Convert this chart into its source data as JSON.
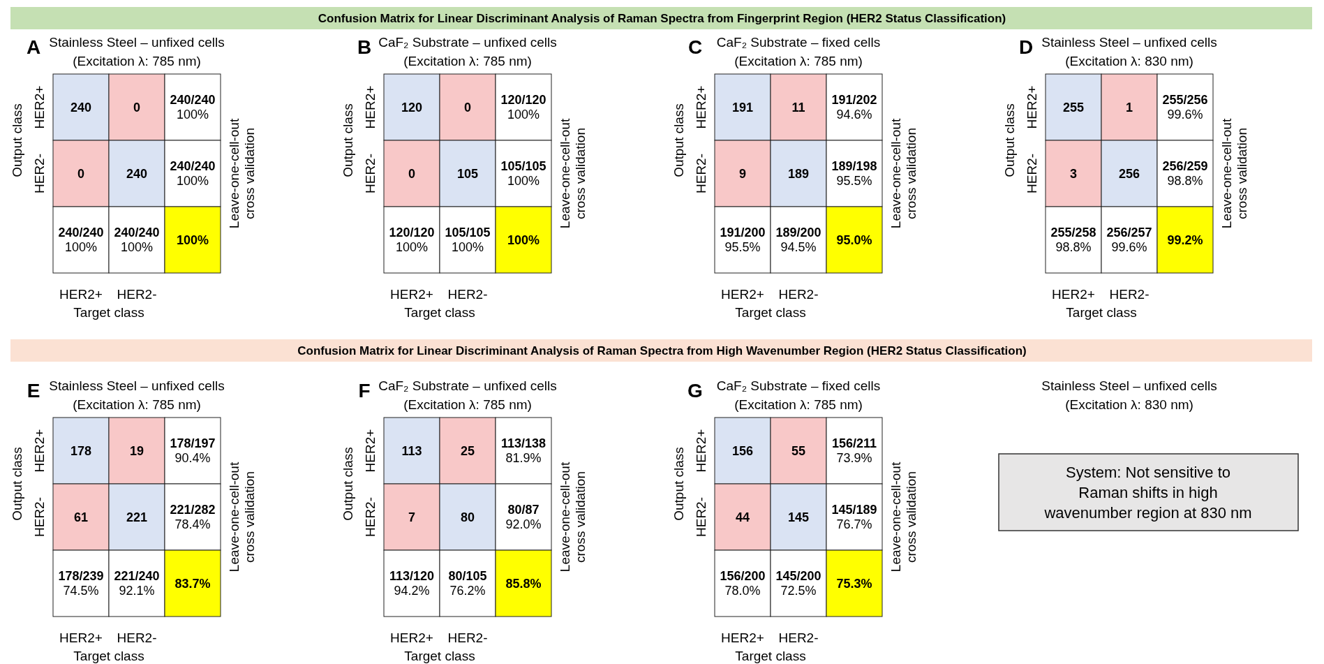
{
  "chart_data": [
    {
      "type": "other",
      "title": "Confusion Matrix for Linear Discriminant Analysis of Raman Spectra from Fingerprint Region (HER2 Status Classification)",
      "color": "#c5e0b3"
    },
    {
      "type": "heatmap",
      "title": "Stainless Steel – unfixed cells\n(Excitation λ: 785 nm)",
      "annotations": [
        "A"
      ],
      "xlabel": "Target class",
      "ylabel": "Output class",
      "y2label": "Leave-one-cell-out\ncross validation",
      "categories": [
        "HER2+",
        "HER2-",
        null
      ],
      "y_categories": [
        "HER2+",
        "HER2-",
        null
      ],
      "cells": [
        [
          240,
          0,
          null
        ],
        [
          0,
          240,
          null
        ],
        [
          null,
          null,
          100
        ]
      ],
      "cell_labels": [
        [
          "240",
          "0",
          "240/240\n100%"
        ],
        [
          "0",
          "240",
          "240/240\n100%"
        ],
        [
          "240/240\n100%",
          "240/240\n100%",
          "100%"
        ]
      ],
      "colors": [
        [
          "#dae3f3",
          "#f8c8c8",
          "#ffffff"
        ],
        [
          "#f8c8c8",
          "#dae3f3",
          "#ffffff"
        ],
        [
          "#ffffff",
          "#ffffff",
          "#ffff00"
        ]
      ]
    },
    {
      "type": "heatmap",
      "title": "CaF₂ Substrate – unfixed cells\n(Excitation λ: 785 nm)",
      "annotations": [
        "B"
      ],
      "xlabel": "Target class",
      "ylabel": "Output class",
      "y2label": "Leave-one-cell-out\ncross validation",
      "categories": [
        "HER2+",
        "HER2-",
        null
      ],
      "y_categories": [
        "HER2+",
        "HER2-",
        null
      ],
      "cells": [
        [
          120,
          0,
          null
        ],
        [
          0,
          105,
          null
        ],
        [
          null,
          null,
          100
        ]
      ],
      "cell_labels": [
        [
          "120",
          "0",
          "120/120\n100%"
        ],
        [
          "0",
          "105",
          "105/105\n100%"
        ],
        [
          "120/120\n100%",
          "105/105\n100%",
          "100%"
        ]
      ],
      "colors": [
        [
          "#dae3f3",
          "#f8c8c8",
          "#ffffff"
        ],
        [
          "#f8c8c8",
          "#dae3f3",
          "#ffffff"
        ],
        [
          "#ffffff",
          "#ffffff",
          "#ffff00"
        ]
      ]
    },
    {
      "type": "heatmap",
      "title": "CaF₂ Substrate – fixed cells\n(Excitation λ: 785 nm)",
      "annotations": [
        "C"
      ],
      "xlabel": "Target class",
      "ylabel": "Output class",
      "y2label": "Leave-one-cell-out\ncross validation",
      "categories": [
        "HER2+",
        "HER2-",
        null
      ],
      "y_categories": [
        "HER2+",
        "HER2-",
        null
      ],
      "cells": [
        [
          191,
          11,
          null
        ],
        [
          9,
          189,
          null
        ],
        [
          null,
          null,
          95.0
        ]
      ],
      "cell_labels": [
        [
          "191",
          "11",
          "191/202\n94.6%"
        ],
        [
          "9",
          "189",
          "189/198\n95.5%"
        ],
        [
          "191/200\n95.5%",
          "189/200\n94.5%",
          "95.0%"
        ]
      ],
      "colors": [
        [
          "#dae3f3",
          "#f8c8c8",
          "#ffffff"
        ],
        [
          "#f8c8c8",
          "#dae3f3",
          "#ffffff"
        ],
        [
          "#ffffff",
          "#ffffff",
          "#ffff00"
        ]
      ]
    },
    {
      "type": "heatmap",
      "title": "Stainless Steel – unfixed cells\n(Excitation λ: 830 nm)",
      "annotations": [
        "D"
      ],
      "xlabel": "Target class",
      "ylabel": "Output class",
      "y2label": "Leave-one-cell-out\ncross validation",
      "categories": [
        "HER2+",
        "HER2-",
        null
      ],
      "y_categories": [
        "HER2+",
        "HER2-",
        null
      ],
      "cells": [
        [
          255,
          1,
          null
        ],
        [
          3,
          256,
          null
        ],
        [
          null,
          null,
          99.2
        ]
      ],
      "cell_labels": [
        [
          "255",
          "1",
          "255/256\n99.6%"
        ],
        [
          "3",
          "256",
          "256/259\n98.8%"
        ],
        [
          "255/258\n98.8%",
          "256/257\n99.6%",
          "99.2%"
        ]
      ],
      "colors": [
        [
          "#dae3f3",
          "#f8c8c8",
          "#ffffff"
        ],
        [
          "#f8c8c8",
          "#dae3f3",
          "#ffffff"
        ],
        [
          "#ffffff",
          "#ffffff",
          "#ffff00"
        ]
      ]
    },
    {
      "type": "other",
      "title": "Confusion Matrix for Linear Discriminant Analysis of Raman Spectra from High Wavenumber Region (HER2 Status Classification)",
      "color": "#fbe1d3"
    },
    {
      "type": "heatmap",
      "title": "Stainless Steel – unfixed cells\n(Excitation λ: 785 nm)",
      "annotations": [
        "E"
      ],
      "xlabel": "Target class",
      "ylabel": "Output class",
      "y2label": "Leave-one-cell-out\ncross validation",
      "categories": [
        "HER2+",
        "HER2-",
        null
      ],
      "y_categories": [
        "HER2+",
        "HER2-",
        null
      ],
      "cells": [
        [
          178,
          19,
          null
        ],
        [
          61,
          221,
          null
        ],
        [
          null,
          null,
          83.7
        ]
      ],
      "cell_labels": [
        [
          "178",
          "19",
          "178/197\n90.4%"
        ],
        [
          "61",
          "221",
          "221/282\n78.4%"
        ],
        [
          "178/239\n74.5%",
          "221/240\n92.1%",
          "83.7%"
        ]
      ],
      "colors": [
        [
          "#dae3f3",
          "#f8c8c8",
          "#ffffff"
        ],
        [
          "#f8c8c8",
          "#dae3f3",
          "#ffffff"
        ],
        [
          "#ffffff",
          "#ffffff",
          "#ffff00"
        ]
      ]
    },
    {
      "type": "heatmap",
      "title": "CaF₂ Substrate – unfixed cells\n(Excitation λ: 785 nm)",
      "annotations": [
        "F"
      ],
      "xlabel": "Target class",
      "ylabel": "Output class",
      "y2label": "Leave-one-cell-out\ncross validation",
      "categories": [
        "HER2+",
        "HER2-",
        null
      ],
      "y_categories": [
        "HER2+",
        "HER2-",
        null
      ],
      "cells": [
        [
          113,
          25,
          null
        ],
        [
          7,
          80,
          null
        ],
        [
          null,
          null,
          85.8
        ]
      ],
      "cell_labels": [
        [
          "113",
          "25",
          "113/138\n81.9%"
        ],
        [
          "7",
          "80",
          "80/87\n92.0%"
        ],
        [
          "113/120\n94.2%",
          "80/105\n76.2%",
          "85.8%"
        ]
      ],
      "colors": [
        [
          "#dae3f3",
          "#f8c8c8",
          "#ffffff"
        ],
        [
          "#f8c8c8",
          "#dae3f3",
          "#ffffff"
        ],
        [
          "#ffffff",
          "#ffffff",
          "#ffff00"
        ]
      ]
    },
    {
      "type": "heatmap",
      "title": "CaF₂ Substrate – fixed cells\n(Excitation λ: 785 nm)",
      "annotations": [
        "G"
      ],
      "xlabel": "Target class",
      "ylabel": "Output class",
      "y2label": "Leave-one-cell-out\ncross validation",
      "categories": [
        "HER2+",
        "HER2-",
        null
      ],
      "y_categories": [
        "HER2+",
        "HER2-",
        null
      ],
      "cells": [
        [
          156,
          55,
          null
        ],
        [
          44,
          145,
          null
        ],
        [
          null,
          null,
          75.3
        ]
      ],
      "cell_labels": [
        [
          "156",
          "55",
          "156/211\n73.9%"
        ],
        [
          "44",
          "145",
          "145/189\n76.7%"
        ],
        [
          "156/200\n78.0%",
          "145/200\n72.5%",
          "75.3%"
        ]
      ],
      "colors": [
        [
          "#dae3f3",
          "#f8c8c8",
          "#ffffff"
        ],
        [
          "#f8c8c8",
          "#dae3f3",
          "#ffffff"
        ],
        [
          "#ffffff",
          "#ffffff",
          "#ffff00"
        ]
      ]
    },
    {
      "type": "other",
      "title": "Stainless Steel – unfixed cells\n(Excitation λ: 830 nm)",
      "annotations": [
        "System: Not sensitive to\nRaman shifts in high\nwavenumber region at 830 nm"
      ],
      "color": "#e7e6e6"
    }
  ]
}
